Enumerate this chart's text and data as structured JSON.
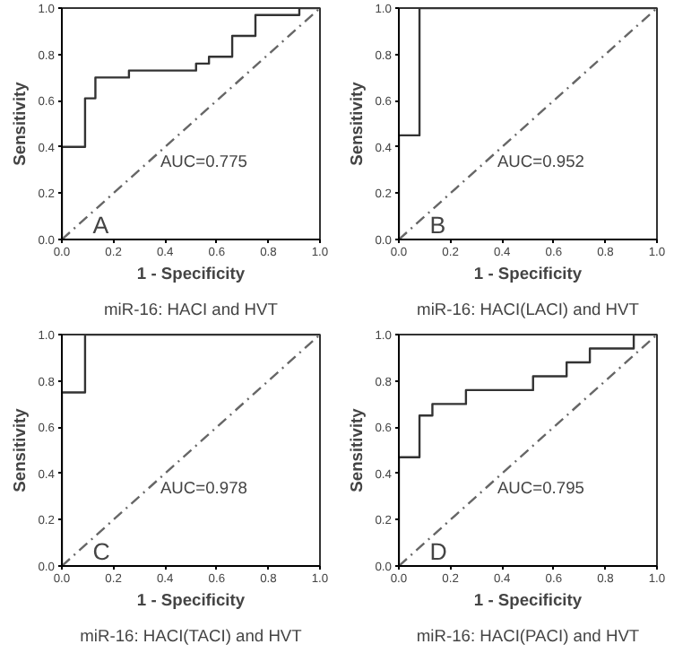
{
  "chart_data": [
    {
      "type": "line",
      "title": "miR-16: HACI and HVT",
      "xlabel": "1 - Specificity",
      "ylabel": "Sensitivity",
      "annotations": [
        "A",
        "AUC=0.775"
      ],
      "xlim": [
        0,
        1
      ],
      "ylim": [
        0,
        1
      ],
      "xticks": [
        {
          "value": 0,
          "label": "0.0"
        },
        {
          "value": 0.2,
          "label": "0.2"
        },
        {
          "value": 0.4,
          "label": "0.4"
        },
        {
          "value": 0.6,
          "label": "0.6"
        },
        {
          "value": 0.8,
          "label": "0.8"
        },
        {
          "value": 1,
          "label": "1.0"
        }
      ],
      "yticks": [
        {
          "value": 0,
          "label": "0.0"
        },
        {
          "value": 0.2,
          "label": "0.2"
        },
        {
          "value": 0.4,
          "label": "0.4"
        },
        {
          "value": 0.6,
          "label": "0.6"
        },
        {
          "value": 0.8,
          "label": "0.8"
        },
        {
          "value": 1,
          "label": "1.0"
        }
      ],
      "grid": false,
      "series": [
        {
          "color": "#333333",
          "x": [
            0,
            0,
            0.09,
            0.09,
            0.13,
            0.13,
            0.26,
            0.26,
            0.52,
            0.52,
            0.57,
            0.57,
            0.66,
            0.66,
            0.75,
            0.75,
            0.92,
            0.92,
            1
          ],
          "values": [
            0,
            0.4,
            0.4,
            0.61,
            0.61,
            0.7,
            0.7,
            0.73,
            0.73,
            0.76,
            0.76,
            0.79,
            0.79,
            0.88,
            0.88,
            0.97,
            0.97,
            1,
            1
          ]
        },
        {
          "color": "#666666",
          "line_style": "dashed",
          "x": [
            0,
            1
          ],
          "values": [
            0,
            1
          ]
        }
      ]
    },
    {
      "type": "line",
      "title": "miR-16: HACI(LACI) and HVT",
      "xlabel": "1 - Specificity",
      "ylabel": "Sensitivity",
      "annotations": [
        "B",
        "AUC=0.952"
      ],
      "xlim": [
        0,
        1
      ],
      "ylim": [
        0,
        1
      ],
      "xticks": [
        {
          "value": 0,
          "label": "0.0"
        },
        {
          "value": 0.2,
          "label": "0.2"
        },
        {
          "value": 0.4,
          "label": "0.4"
        },
        {
          "value": 0.6,
          "label": "0.6"
        },
        {
          "value": 0.8,
          "label": "0.8"
        },
        {
          "value": 1,
          "label": "1.0"
        }
      ],
      "yticks": [
        {
          "value": 0,
          "label": "0.0"
        },
        {
          "value": 0.2,
          "label": "0.2"
        },
        {
          "value": 0.4,
          "label": "0.4"
        },
        {
          "value": 0.6,
          "label": "0.6"
        },
        {
          "value": 0.8,
          "label": "0.8"
        },
        {
          "value": 1,
          "label": "1.0"
        }
      ],
      "grid": false,
      "series": [
        {
          "color": "#333333",
          "x": [
            0,
            0,
            0.08,
            0.08,
            1
          ],
          "values": [
            0,
            0.45,
            0.45,
            1,
            1
          ]
        },
        {
          "color": "#666666",
          "line_style": "dashed",
          "x": [
            0,
            1
          ],
          "values": [
            0,
            1
          ]
        }
      ]
    },
    {
      "type": "line",
      "title": "miR-16: HACI(TACI) and HVT",
      "xlabel": "1 - Specificity",
      "ylabel": "Sensitivity",
      "annotations": [
        "C",
        "AUC=0.978"
      ],
      "xlim": [
        0,
        1
      ],
      "ylim": [
        0,
        1
      ],
      "xticks": [
        {
          "value": 0,
          "label": "0.0"
        },
        {
          "value": 0.2,
          "label": "0.2"
        },
        {
          "value": 0.4,
          "label": "0.4"
        },
        {
          "value": 0.6,
          "label": "0.6"
        },
        {
          "value": 0.8,
          "label": "0.8"
        },
        {
          "value": 1,
          "label": "1.0"
        }
      ],
      "yticks": [
        {
          "value": 0,
          "label": "0.0"
        },
        {
          "value": 0.2,
          "label": "0.2"
        },
        {
          "value": 0.4,
          "label": "0.4"
        },
        {
          "value": 0.6,
          "label": "0.6"
        },
        {
          "value": 0.8,
          "label": "0.8"
        },
        {
          "value": 1,
          "label": "1.0"
        }
      ],
      "grid": false,
      "series": [
        {
          "color": "#333333",
          "x": [
            0,
            0,
            0.09,
            0.09,
            1
          ],
          "values": [
            0,
            0.75,
            0.75,
            1,
            1
          ]
        },
        {
          "color": "#666666",
          "line_style": "dashed",
          "x": [
            0,
            1
          ],
          "values": [
            0,
            1
          ]
        }
      ]
    },
    {
      "type": "line",
      "title": "miR-16: HACI(PACI) and HVT",
      "xlabel": "1 - Specificity",
      "ylabel": "Sensitivity",
      "annotations": [
        "D",
        "AUC=0.795"
      ],
      "xlim": [
        0,
        1
      ],
      "ylim": [
        0,
        1
      ],
      "xticks": [
        {
          "value": 0,
          "label": "0.0"
        },
        {
          "value": 0.2,
          "label": "0.2"
        },
        {
          "value": 0.4,
          "label": "0.4"
        },
        {
          "value": 0.6,
          "label": "0.6"
        },
        {
          "value": 0.8,
          "label": "0.8"
        },
        {
          "value": 1,
          "label": "1.0"
        }
      ],
      "yticks": [
        {
          "value": 0,
          "label": "0.0"
        },
        {
          "value": 0.2,
          "label": "0.2"
        },
        {
          "value": 0.4,
          "label": "0.4"
        },
        {
          "value": 0.6,
          "label": "0.6"
        },
        {
          "value": 0.8,
          "label": "0.8"
        },
        {
          "value": 1,
          "label": "1.0"
        }
      ],
      "grid": false,
      "series": [
        {
          "color": "#333333",
          "x": [
            0,
            0,
            0.08,
            0.08,
            0.13,
            0.13,
            0.26,
            0.26,
            0.52,
            0.52,
            0.65,
            0.65,
            0.74,
            0.74,
            0.91,
            0.91,
            1
          ],
          "values": [
            0,
            0.47,
            0.47,
            0.65,
            0.65,
            0.7,
            0.7,
            0.76,
            0.76,
            0.82,
            0.82,
            0.88,
            0.88,
            0.94,
            0.94,
            1,
            1
          ]
        },
        {
          "color": "#666666",
          "line_style": "dashed",
          "x": [
            0,
            1
          ],
          "values": [
            0,
            1
          ]
        }
      ]
    }
  ]
}
